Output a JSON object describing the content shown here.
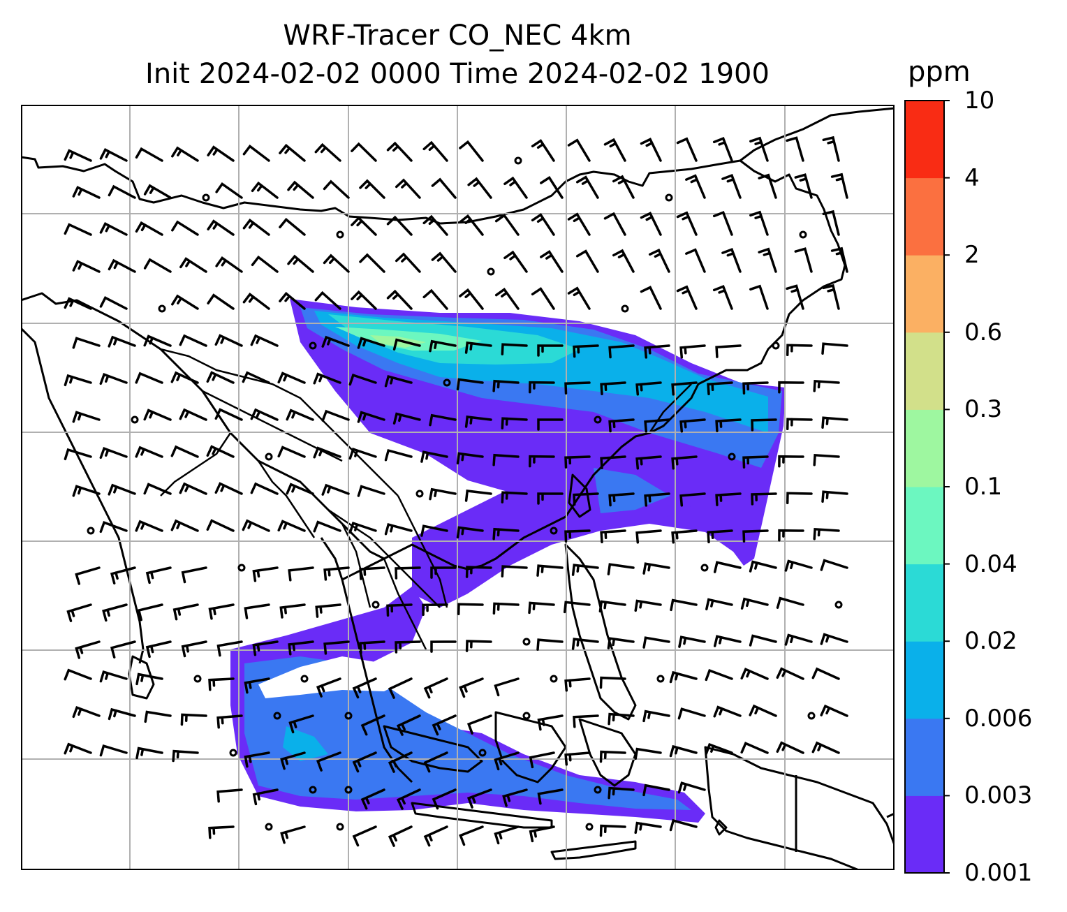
{
  "title": {
    "line1": "WRF-Tracer CO_NEC 4km",
    "line2": "Init 2024-02-02 0000 Time 2024-02-02 1900"
  },
  "colorbar": {
    "unit": "ppm",
    "levels": [
      "0.001",
      "0.003",
      "0.006",
      "0.02",
      "0.04",
      "0.1",
      "0.3",
      "0.6",
      "2",
      "4",
      "10"
    ],
    "colors": [
      "#6a2cf7",
      "#3a78f2",
      "#0ab0ea",
      "#2bdad6",
      "#6cf7c0",
      "#9ef7a0",
      "#d2e08a",
      "#fbb063",
      "#fb7040",
      "#f92c14"
    ]
  },
  "map": {
    "layers": [
      "coastlines",
      "country-borders",
      "gridlines",
      "co-tracer-plume",
      "wind-barbs"
    ]
  }
}
